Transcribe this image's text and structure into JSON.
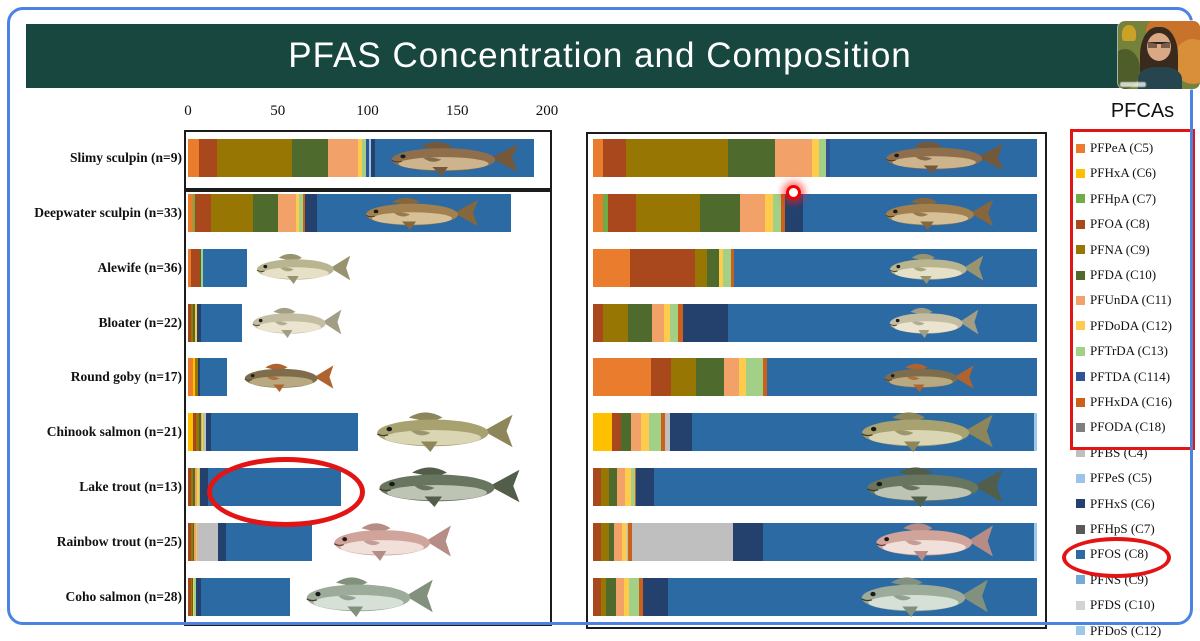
{
  "header": {
    "title": "PFAS Concentration and Composition"
  },
  "webcam": {
    "description": "presenter video thumbnail"
  },
  "legend": {
    "title": "PFCAs",
    "items": [
      {
        "key": "PFPeA",
        "label": "PFPeA (C5)",
        "color": "#EA7C2E",
        "in_red_box": true,
        "circled": false
      },
      {
        "key": "PFHxA",
        "label": "PFHxA (C6)",
        "color": "#FFC000",
        "in_red_box": true,
        "circled": false
      },
      {
        "key": "PFHpA",
        "label": "PFHpA (C7)",
        "color": "#6FAC46",
        "in_red_box": true,
        "circled": false
      },
      {
        "key": "PFOA",
        "label": "PFOA (C8)",
        "color": "#A8481C",
        "in_red_box": true,
        "circled": false
      },
      {
        "key": "PFNA",
        "label": "PFNA (C9)",
        "color": "#977603",
        "in_red_box": true,
        "circled": false
      },
      {
        "key": "PFDA",
        "label": "PFDA (C10)",
        "color": "#4E6A2D",
        "in_red_box": true,
        "circled": false
      },
      {
        "key": "PFUnDA",
        "label": "PFUnDA (C11)",
        "color": "#F2A269",
        "in_red_box": true,
        "circled": false
      },
      {
        "key": "PFDoDA",
        "label": "PFDoDA (C12)",
        "color": "#FFCB4D",
        "in_red_box": true,
        "circled": false
      },
      {
        "key": "PFTrDA",
        "label": "PFTrDA (C13)",
        "color": "#A2D086",
        "in_red_box": true,
        "circled": false
      },
      {
        "key": "PFTDA",
        "label": "PFTDA (C114)",
        "color": "#2F5597",
        "in_red_box": true,
        "circled": false
      },
      {
        "key": "PFHxDA",
        "label": "PFHxDA (C16)",
        "color": "#CC5F1A",
        "in_red_box": true,
        "circled": false
      },
      {
        "key": "PFODA",
        "label": "PFODA (C18)",
        "color": "#7F7F7F",
        "in_red_box": true,
        "circled": false
      },
      {
        "key": "PFBS",
        "label": "PFBS (C4)",
        "color": "#BFBFBF",
        "in_red_box": false,
        "circled": false
      },
      {
        "key": "PFPeS",
        "label": "PFPeS (C5)",
        "color": "#9DC3E6",
        "in_red_box": false,
        "circled": false
      },
      {
        "key": "PFHxS",
        "label": "PFHxS (C6)",
        "color": "#24416E",
        "in_red_box": false,
        "circled": false
      },
      {
        "key": "PFHpS",
        "label": "PFHpS (C7)",
        "color": "#595959",
        "in_red_box": false,
        "circled": false
      },
      {
        "key": "PFOS",
        "label": "PFOS (C8)",
        "color": "#2C6AA3",
        "in_red_box": false,
        "circled": true
      },
      {
        "key": "PFNS",
        "label": "PFNS (C9)",
        "color": "#74A9D8",
        "in_red_box": false,
        "circled": false
      },
      {
        "key": "PFDS",
        "label": "PFDS (C10)",
        "color": "#D3D3D3",
        "in_red_box": false,
        "circled": false
      },
      {
        "key": "PFDoS",
        "label": "PFDoS (C12)",
        "color": "#9EC7E8",
        "in_red_box": false,
        "circled": false
      }
    ]
  },
  "palette": {
    "PFPeA": "#EA7C2E",
    "PFHxA": "#FFC000",
    "PFHpA": "#6FAC46",
    "PFOA": "#A8481C",
    "PFNA": "#977603",
    "PFDA": "#4E6A2D",
    "PFUnDA": "#F2A269",
    "PFDoDA": "#FFCB4D",
    "PFTrDA": "#A2D086",
    "PFTDA": "#2F5597",
    "PFHxDA": "#CC5F1A",
    "PFODA": "#7F7F7F",
    "PFBS": "#BFBFBF",
    "PFPeS": "#9DC3E6",
    "PFHxS": "#24416E",
    "PFHpS": "#595959",
    "PFOS": "#2C6AA3",
    "PFNS": "#74A9D8",
    "PFDS": "#D3D3D3",
    "PFDoS": "#9EC7E8"
  },
  "fish_colors": {
    "slimy-sculpin": {
      "body": "#8f6f4b",
      "belly": "#cdb48c",
      "fin": "#74583a"
    },
    "deepwater-sculpin": {
      "body": "#a3804f",
      "belly": "#d6c096",
      "fin": "#86663c"
    },
    "alewife": {
      "body": "#b9b591",
      "belly": "#e6e0c6",
      "fin": "#98946f"
    },
    "bloater": {
      "body": "#c3bda4",
      "belly": "#ebe5d0",
      "fin": "#a29d85"
    },
    "round-goby": {
      "body": "#7e6c4b",
      "belly": "#b8a981",
      "fin": "#b0622f"
    },
    "chinook-salmon": {
      "body": "#a8a170",
      "belly": "#dad5b2",
      "fin": "#8c865a"
    },
    "lake-trout": {
      "body": "#68755f",
      "belly": "#bdc4b4",
      "fin": "#525e4a"
    },
    "rainbow-trout": {
      "body": "#d0a39b",
      "belly": "#f1dfd9",
      "fin": "#b68d86"
    },
    "coho-salmon": {
      "body": "#9dab9b",
      "belly": "#d7e0d6",
      "fin": "#82917e"
    }
  },
  "chart_data": [
    {
      "type": "bar",
      "stacked": true,
      "orientation": "horizontal",
      "title": "",
      "x_ticks": [
        0,
        50,
        100,
        150,
        200
      ],
      "xlim": [
        0,
        200
      ],
      "categories": [
        "Slimy sculpin (n=9)",
        "Deepwater sculpin (n=33)",
        "Alewife (n=36)",
        "Bloater (n=22)",
        "Round goby (n=17)",
        "Chinook salmon (n=21)",
        "Lake trout (n=13)",
        "Rainbow trout (n=25)",
        "Coho salmon (n=28)"
      ],
      "rows": [
        {
          "species": "slimy-sculpin",
          "category": "Slimy sculpin (n=9)",
          "segments": [
            [
              "PFPeA",
              6
            ],
            [
              "PFOA",
              10
            ],
            [
              "PFNA",
              42
            ],
            [
              "PFDA",
              20
            ],
            [
              "PFUnDA",
              17
            ],
            [
              "PFDoDA",
              2
            ],
            [
              "PFTrDA",
              2
            ],
            [
              "PFTDA",
              2
            ],
            [
              "PFPeS",
              1
            ],
            [
              "PFHxS",
              2
            ],
            [
              "PFOS",
              89
            ]
          ]
        },
        {
          "species": "deepwater-sculpin",
          "category": "Deepwater sculpin (n=33)",
          "segments": [
            [
              "PFPeA",
              3
            ],
            [
              "PFHpA",
              1
            ],
            [
              "PFOA",
              9
            ],
            [
              "PFNA",
              23
            ],
            [
              "PFDA",
              14
            ],
            [
              "PFUnDA",
              10
            ],
            [
              "PFDoDA",
              2
            ],
            [
              "PFTrDA",
              2
            ],
            [
              "PFHxDA",
              1
            ],
            [
              "PFHxS",
              7
            ],
            [
              "PFOS",
              108
            ]
          ]
        },
        {
          "species": "alewife",
          "category": "Alewife (n=36)",
          "segments": [
            [
              "PFPeA",
              1.5
            ],
            [
              "PFOA",
              5
            ],
            [
              "PFDA",
              1
            ],
            [
              "PFTrDA",
              1
            ],
            [
              "PFOS",
              24.5
            ]
          ]
        },
        {
          "species": "bloater",
          "category": "Bloater (n=22)",
          "segments": [
            [
              "PFOA",
              1.5
            ],
            [
              "PFNA",
              1.5
            ],
            [
              "PFDA",
              1
            ],
            [
              "PFDoDA",
              1
            ],
            [
              "PFHxS",
              2
            ],
            [
              "PFOS",
              23
            ]
          ]
        },
        {
          "species": "round-goby",
          "category": "Round goby (n=17)",
          "segments": [
            [
              "PFPeA",
              3
            ],
            [
              "PFHxA",
              1
            ],
            [
              "PFNA",
              1.5
            ],
            [
              "PFHxS",
              1
            ],
            [
              "PFOS",
              15.5
            ]
          ]
        },
        {
          "species": "chinook-salmon",
          "category": "Chinook salmon (n=21)",
          "segments": [
            [
              "PFHxA",
              3
            ],
            [
              "PFOA",
              1.5
            ],
            [
              "PFNA",
              1.5
            ],
            [
              "PFDA",
              1
            ],
            [
              "PFUnDA",
              1
            ],
            [
              "PFDoDA",
              0.5
            ],
            [
              "PFTrDA",
              0.5
            ],
            [
              "PFBS",
              1
            ],
            [
              "PFHxS",
              3
            ],
            [
              "PFOS",
              82
            ]
          ]
        },
        {
          "species": "lake-trout",
          "category": "Lake trout (n=13)",
          "segments": [
            [
              "PFOA",
              1.5
            ],
            [
              "PFNA",
              1.5
            ],
            [
              "PFDA",
              1
            ],
            [
              "PFUnDA",
              1
            ],
            [
              "PFDoDA",
              1
            ],
            [
              "PFTrDA",
              0.5
            ],
            [
              "PFHxS",
              4.5
            ],
            [
              "PFOS",
              74
            ]
          ]
        },
        {
          "species": "rainbow-trout",
          "category": "Rainbow trout (n=25)",
          "segments": [
            [
              "PFOA",
              1.5
            ],
            [
              "PFNA",
              1.5
            ],
            [
              "PFDA",
              0.5
            ],
            [
              "PFUnDA",
              1
            ],
            [
              "PFDoDA",
              0.5
            ],
            [
              "PFBS",
              12
            ],
            [
              "PFHxS",
              4
            ],
            [
              "PFOS",
              48
            ]
          ]
        },
        {
          "species": "coho-salmon",
          "category": "Coho salmon (n=28)",
          "segments": [
            [
              "PFOA",
              1.5
            ],
            [
              "PFNA",
              1
            ],
            [
              "PFDA",
              0.5
            ],
            [
              "PFDoDA",
              0.5
            ],
            [
              "PFTrDA",
              1
            ],
            [
              "PFHxS",
              2.5
            ],
            [
              "PFOS",
              50
            ]
          ]
        }
      ]
    },
    {
      "type": "bar",
      "stacked": true,
      "orientation": "horizontal",
      "title": "",
      "xlim": [
        0,
        100
      ],
      "percent": true,
      "rows": [
        {
          "species": "slimy-sculpin",
          "segments": [
            [
              "PFPeA",
              2.2
            ],
            [
              "PFOA",
              5.2
            ],
            [
              "PFNA",
              22.9
            ],
            [
              "PFDA",
              10.8
            ],
            [
              "PFUnDA",
              8.3
            ],
            [
              "PFDoDA",
              1.6
            ],
            [
              "PFTrDA",
              1.6
            ],
            [
              "PFTDA",
              0.8
            ],
            [
              "PFOS",
              46.6
            ]
          ]
        },
        {
          "species": "deepwater-sculpin",
          "segments": [
            [
              "PFPeA",
              2.2
            ],
            [
              "PFHpA",
              1.1
            ],
            [
              "PFOA",
              6.3
            ],
            [
              "PFNA",
              14.6
            ],
            [
              "PFDA",
              9.0
            ],
            [
              "PFUnDA",
              5.6
            ],
            [
              "PFDoDA",
              1.8
            ],
            [
              "PFTrDA",
              1.8
            ],
            [
              "PFHxDA",
              0.8
            ],
            [
              "PFHxS",
              4.0
            ],
            [
              "PFOS",
              52.8
            ]
          ]
        },
        {
          "species": "alewife",
          "segments": [
            [
              "PFPeA",
              8.3
            ],
            [
              "PFOA",
              14.6
            ],
            [
              "PFNA",
              2.7
            ],
            [
              "PFDA",
              2.7
            ],
            [
              "PFDoDA",
              0.9
            ],
            [
              "PFTrDA",
              1.8
            ],
            [
              "PFHxDA",
              0.7
            ],
            [
              "PFOS",
              68.3
            ]
          ]
        },
        {
          "species": "bloater",
          "segments": [
            [
              "PFOA",
              2.2
            ],
            [
              "PFNA",
              5.6
            ],
            [
              "PFDA",
              5.6
            ],
            [
              "PFUnDA",
              2.7
            ],
            [
              "PFDoDA",
              1.3
            ],
            [
              "PFTrDA",
              1.8
            ],
            [
              "PFHxDA",
              1.1
            ],
            [
              "PFHxS",
              10.1
            ],
            [
              "PFOS",
              69.6
            ]
          ]
        },
        {
          "species": "round-goby",
          "segments": [
            [
              "PFPeA",
              13.0
            ],
            [
              "PFOA",
              4.5
            ],
            [
              "PFNA",
              5.6
            ],
            [
              "PFDA",
              6.3
            ],
            [
              "PFUnDA",
              3.4
            ],
            [
              "PFDoDA",
              1.6
            ],
            [
              "PFTrDA",
              3.8
            ],
            [
              "PFHxDA",
              1.1
            ],
            [
              "PFOS",
              60.7
            ]
          ]
        },
        {
          "species": "chinook-salmon",
          "segments": [
            [
              "PFHxA",
              4.2
            ],
            [
              "PFOA",
              2.2
            ],
            [
              "PFDA",
              2.2
            ],
            [
              "PFUnDA",
              2.2
            ],
            [
              "PFDoDA",
              1.8
            ],
            [
              "PFTrDA",
              2.7
            ],
            [
              "PFHxDA",
              0.9
            ],
            [
              "PFBS",
              1.1
            ],
            [
              "PFHxS",
              5.0
            ],
            [
              "PFOS",
              77.0
            ],
            [
              "PFDoS",
              0.7
            ]
          ]
        },
        {
          "species": "lake-trout",
          "segments": [
            [
              "PFOA",
              1.8
            ],
            [
              "PFNA",
              1.8
            ],
            [
              "PFDA",
              1.8
            ],
            [
              "PFUnDA",
              1.8
            ],
            [
              "PFDoDA",
              1.3
            ],
            [
              "PFTrDA",
              0.9
            ],
            [
              "PFHxDA",
              0.4
            ],
            [
              "PFHxS",
              4.0
            ],
            [
              "PFOS",
              86.2
            ]
          ]
        },
        {
          "species": "rainbow-trout",
          "segments": [
            [
              "PFOA",
              1.8
            ],
            [
              "PFNA",
              1.8
            ],
            [
              "PFDA",
              1.1
            ],
            [
              "PFUnDA",
              1.8
            ],
            [
              "PFDoDA",
              1.1
            ],
            [
              "PFPeS",
              0.4
            ],
            [
              "PFHxDA",
              0.7
            ],
            [
              "PFBS",
              22.9
            ],
            [
              "PFHxS",
              6.7
            ],
            [
              "PFOS",
              61.0
            ],
            [
              "PFDoS",
              0.7
            ]
          ]
        },
        {
          "species": "coho-salmon",
          "segments": [
            [
              "PFOA",
              1.8
            ],
            [
              "PFNA",
              1.2
            ],
            [
              "PFDA",
              2.2
            ],
            [
              "PFUnDA",
              1.8
            ],
            [
              "PFDoDA",
              1.1
            ],
            [
              "PFTrDA",
              2.2
            ],
            [
              "PFHxDA",
              0.9
            ],
            [
              "PFHxS",
              5.6
            ],
            [
              "PFOS",
              83.2
            ]
          ]
        }
      ]
    }
  ],
  "annotations": {
    "red_box_around_pfca_legend": true,
    "red_ellipse_around_pfos_legend": true,
    "red_ellipse_on_lake_trout_bar": true,
    "laser_pointer_dot": true
  }
}
